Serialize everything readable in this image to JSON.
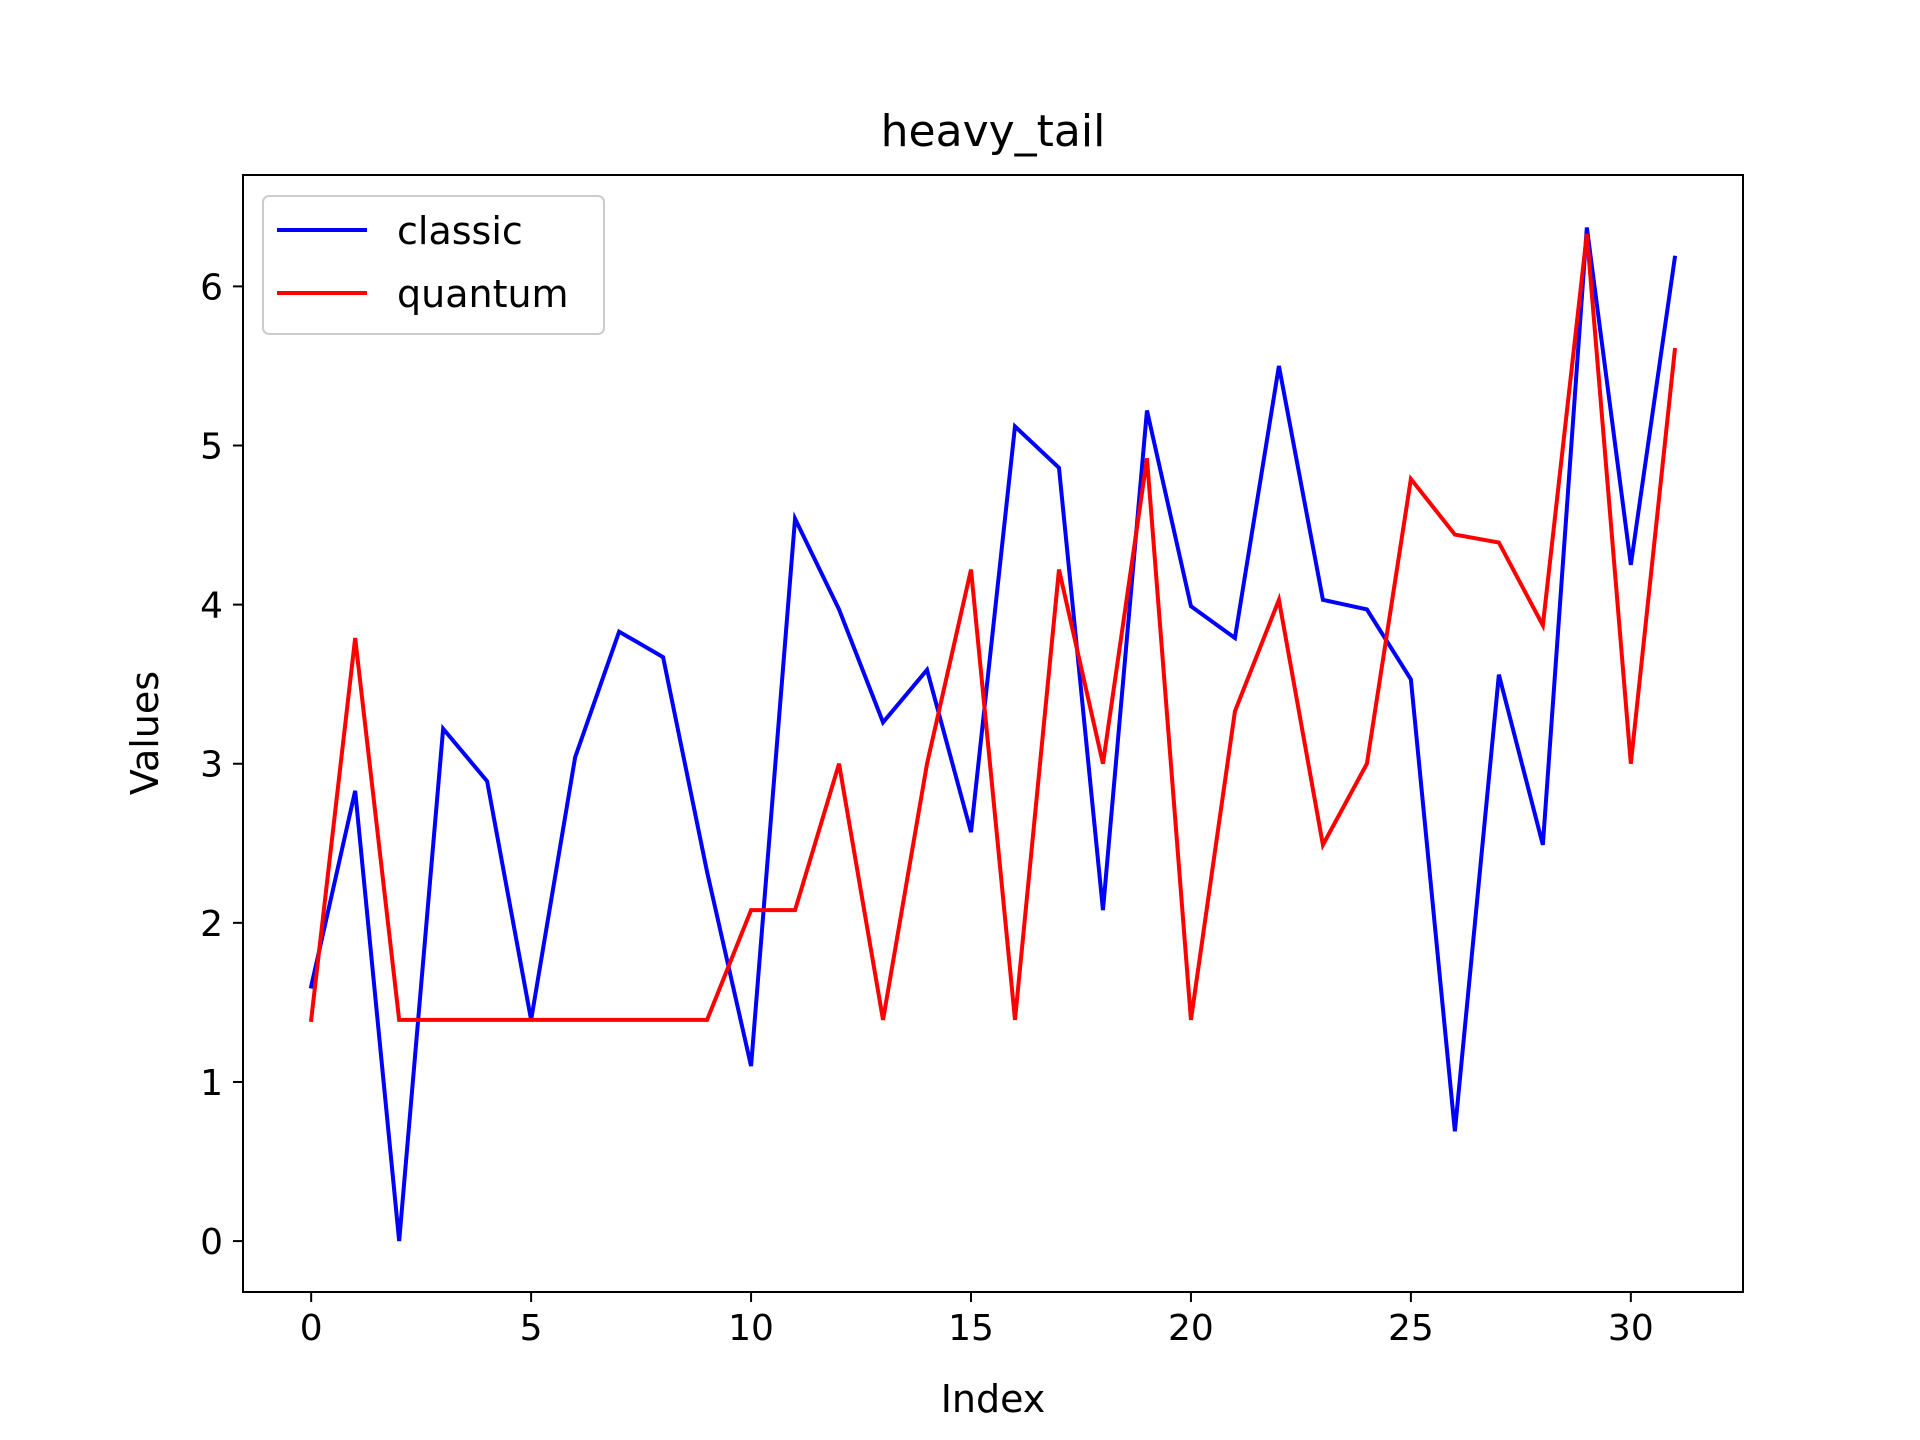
{
  "chart_data": {
    "type": "line",
    "title": "heavy_tail",
    "xlabel": "Index",
    "ylabel": "Values",
    "xlim": [
      -1.55,
      32.55
    ],
    "ylim": [
      -0.32,
      6.7
    ],
    "xticks": [
      0,
      5,
      10,
      15,
      20,
      25,
      30
    ],
    "yticks": [
      0,
      1,
      2,
      3,
      4,
      5,
      6
    ],
    "grid": false,
    "legend_position": "upper left",
    "x": [
      0,
      1,
      2,
      3,
      4,
      5,
      6,
      7,
      8,
      9,
      10,
      11,
      12,
      13,
      14,
      15,
      16,
      17,
      18,
      19,
      20,
      21,
      22,
      23,
      24,
      25,
      26,
      27,
      28,
      29,
      30,
      31
    ],
    "series": [
      {
        "name": "classic",
        "color": "#0000ff",
        "values": [
          1.6,
          2.83,
          0.0,
          3.22,
          2.89,
          1.39,
          3.04,
          3.83,
          3.67,
          2.32,
          1.1,
          4.54,
          3.97,
          3.26,
          3.59,
          2.57,
          5.12,
          4.86,
          2.08,
          5.22,
          3.99,
          3.79,
          5.5,
          4.03,
          3.97,
          3.53,
          0.69,
          3.56,
          2.49,
          6.37,
          4.25,
          6.18
        ]
      },
      {
        "name": "quantum",
        "color": "#ff0000",
        "values": [
          1.39,
          3.79,
          1.39,
          1.39,
          1.39,
          1.39,
          1.39,
          1.39,
          1.39,
          1.39,
          2.08,
          2.08,
          3.0,
          1.39,
          3.0,
          4.22,
          1.39,
          4.22,
          3.0,
          4.92,
          1.39,
          3.33,
          4.03,
          2.49,
          3.0,
          4.79,
          4.44,
          4.39,
          3.87,
          6.33,
          3.0,
          5.6
        ]
      }
    ]
  }
}
